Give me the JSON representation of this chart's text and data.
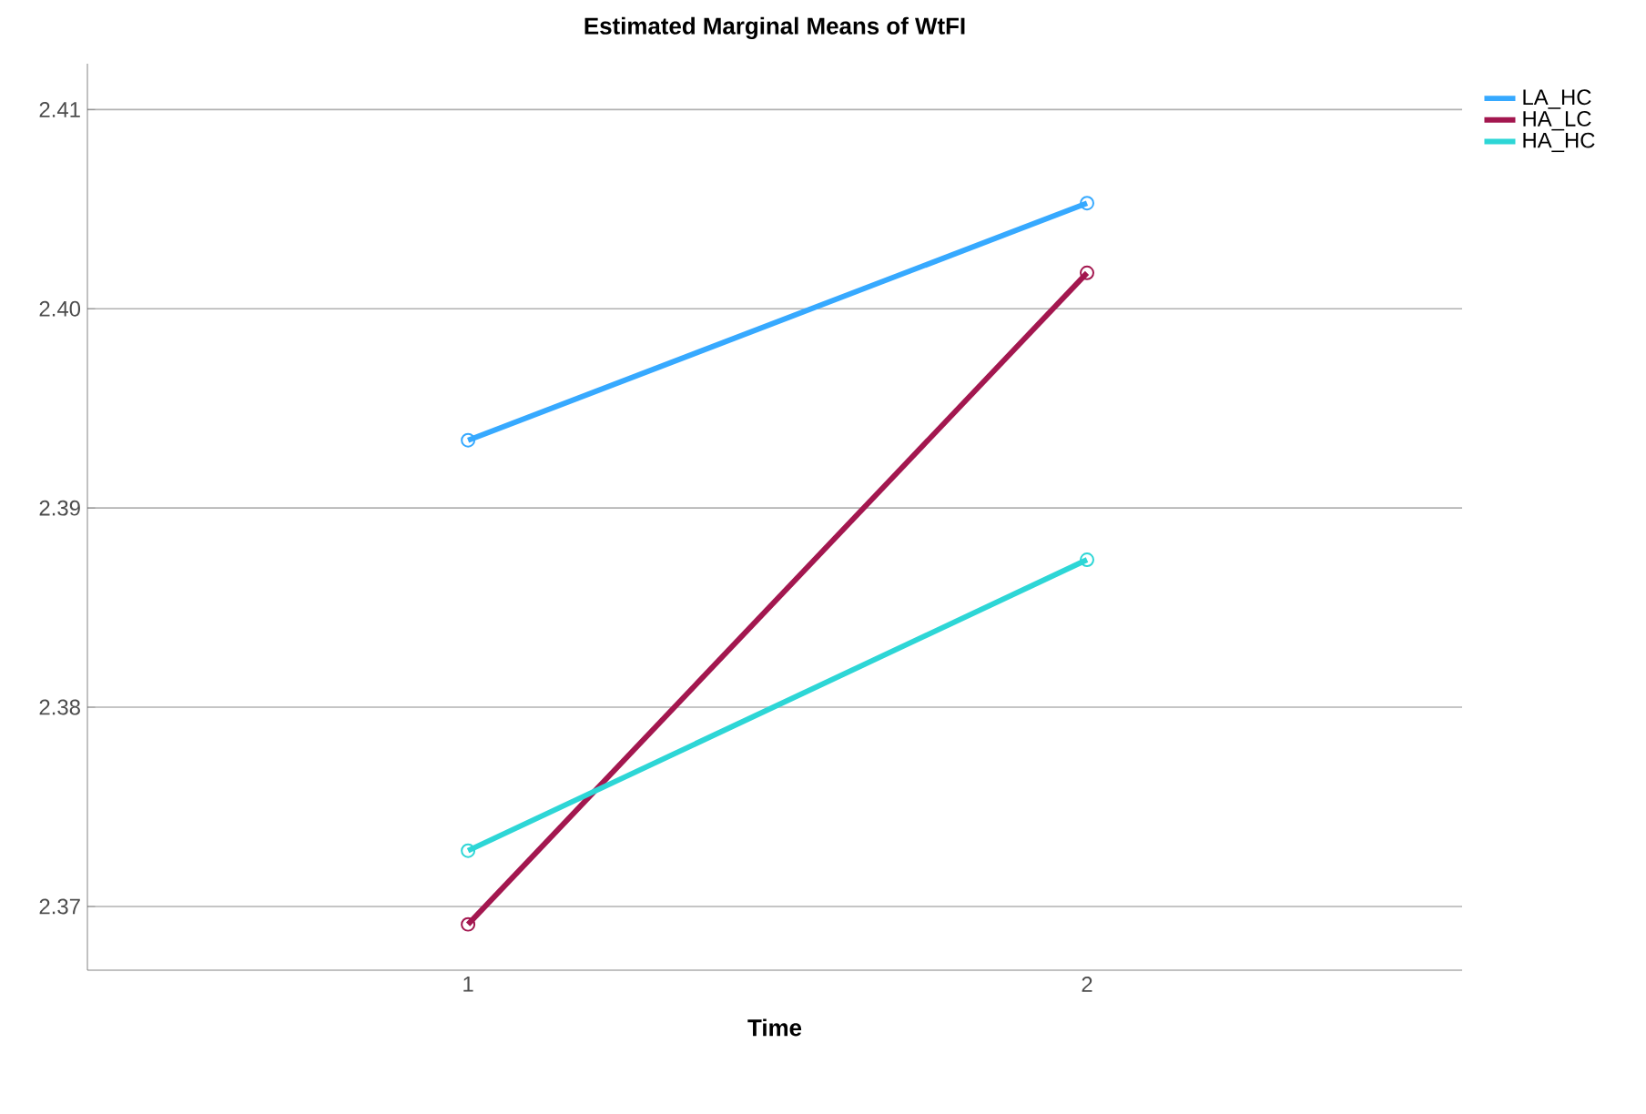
{
  "chart_data": {
    "type": "line",
    "title": "Estimated Marginal Means of WtFI",
    "xlabel": "Time",
    "categories": [
      "1",
      "2"
    ],
    "series": [
      {
        "name": "LA_HC",
        "color": "#36a9ff",
        "values": [
          2.3934,
          2.4053
        ]
      },
      {
        "name": "HA_LC",
        "color": "#a3174f",
        "values": [
          2.3691,
          2.4018
        ]
      },
      {
        "name": "HA_HC",
        "color": "#2dd6d6",
        "values": [
          2.3728,
          2.3874
        ]
      }
    ],
    "ylim": [
      2.3668,
      2.4123
    ],
    "yticks": [
      2.37,
      2.38,
      2.39,
      {
        "value": 2.4,
        "label": "2.40"
      },
      2.41
    ],
    "grid": "y",
    "legend": "top right",
    "marker": "circle",
    "line_style": "solid"
  }
}
